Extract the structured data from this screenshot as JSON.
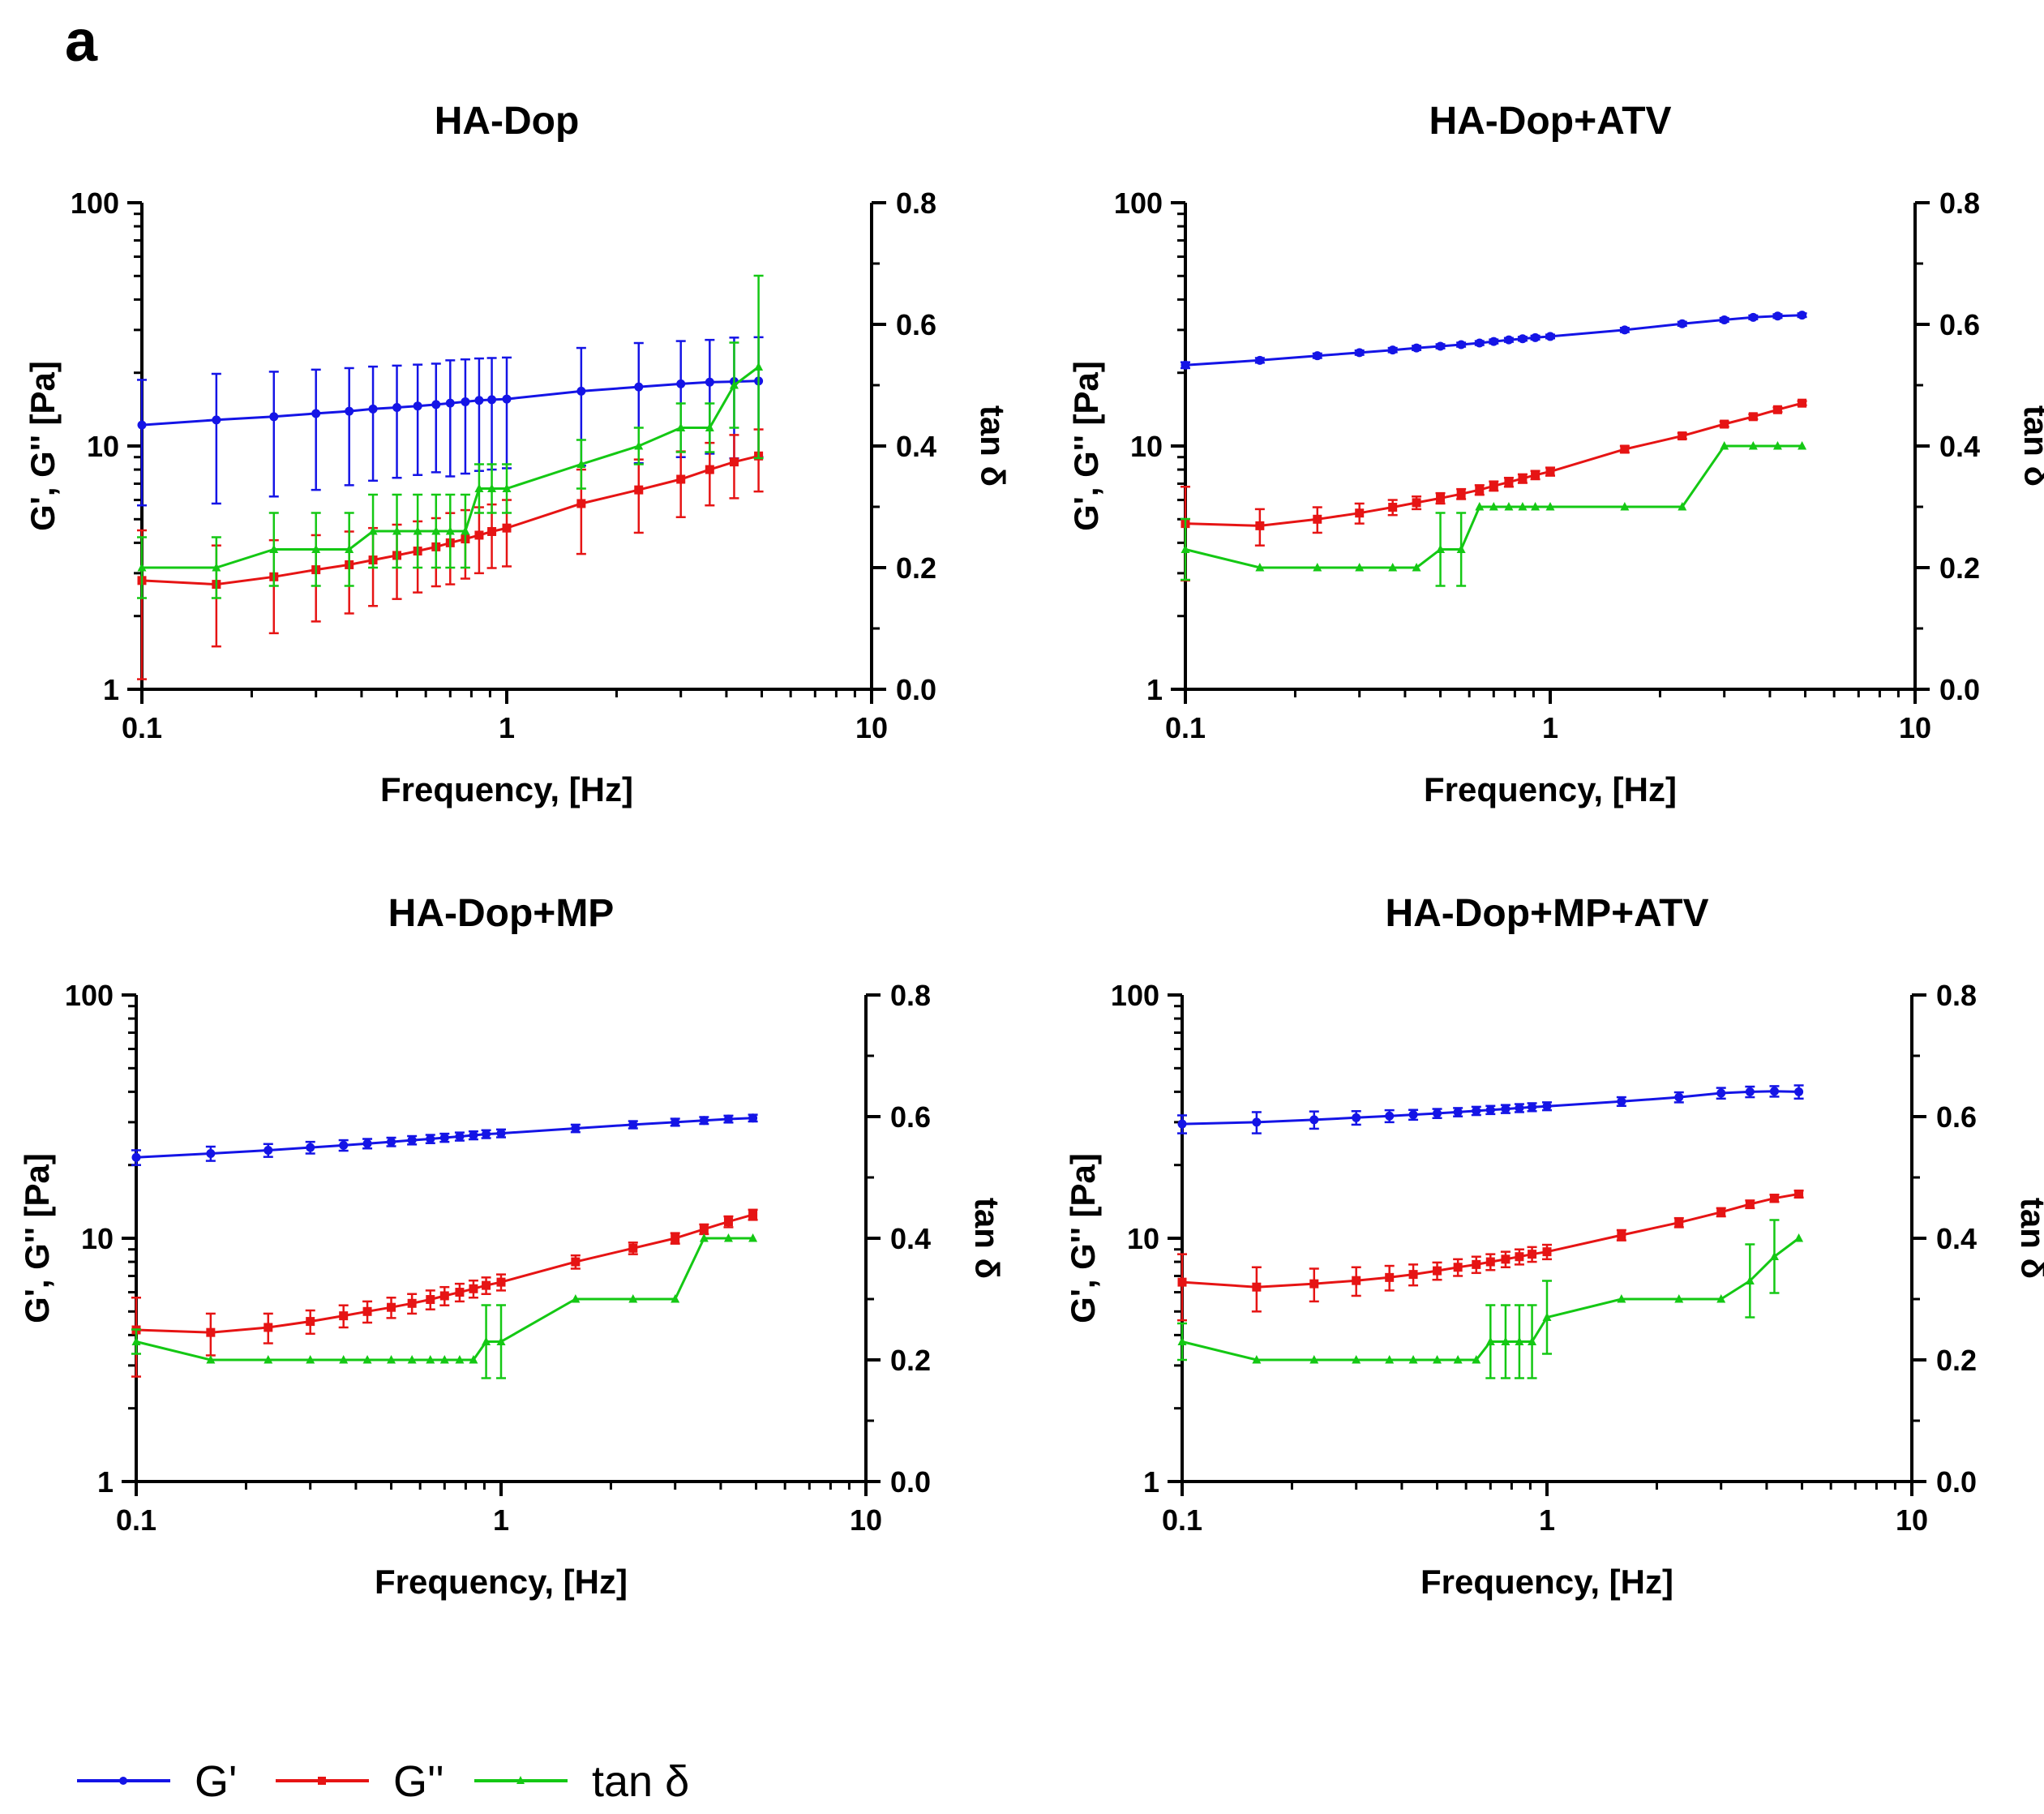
{
  "figure": {
    "panel_letter": "a",
    "colors": {
      "g_prime": "#1414e6",
      "g_double_prime": "#e61414",
      "tan_delta": "#14c814"
    }
  },
  "legend": {
    "items": [
      {
        "name": "G'",
        "color": "#1414e6"
      },
      {
        "name": "G''",
        "color": "#e61414"
      },
      {
        "name": "tan δ",
        "color": "#14c814"
      }
    ]
  },
  "chart_data": [
    {
      "type": "line",
      "title": "HA-Dop",
      "xlabel": "Frequency, [Hz]",
      "ylabel": "G', G'' [Pa]",
      "y2label": "tan δ",
      "xscale": "log",
      "xlim": [
        0.1,
        10
      ],
      "xticks": [
        "0.1",
        "1",
        "10"
      ],
      "yscale": "log",
      "ylim": [
        1,
        100
      ],
      "yticks": [
        "1",
        "10",
        "100"
      ],
      "y2lim": [
        0,
        0.8
      ],
      "y2ticks": [
        "0.0",
        "0.2",
        "0.4",
        "0.6",
        "0.8"
      ],
      "series": [
        {
          "name": "G'",
          "axis": "left",
          "x": [
            0.1,
            0.16,
            0.23,
            0.3,
            0.37,
            0.43,
            0.5,
            0.57,
            0.64,
            0.7,
            0.77,
            0.84,
            0.91,
            1.0,
            1.6,
            2.3,
            3.0,
            3.6,
            4.2,
            4.9
          ],
          "y": [
            12.2,
            12.8,
            13.2,
            13.6,
            13.9,
            14.2,
            14.4,
            14.6,
            14.8,
            15.0,
            15.2,
            15.4,
            15.5,
            15.6,
            16.8,
            17.5,
            18.0,
            18.3,
            18.4,
            18.5
          ],
          "err": [
            6.5,
            7,
            7,
            7,
            7,
            7,
            7,
            7,
            7,
            7.5,
            7.5,
            7.5,
            7.5,
            7.5,
            8.5,
            9,
            9,
            9,
            9.5,
            9.5
          ]
        },
        {
          "name": "G''",
          "axis": "left",
          "x": [
            0.1,
            0.16,
            0.23,
            0.3,
            0.37,
            0.43,
            0.5,
            0.57,
            0.64,
            0.7,
            0.77,
            0.84,
            0.91,
            1.0,
            1.6,
            2.3,
            3.0,
            3.6,
            4.2,
            4.9
          ],
          "y": [
            2.8,
            2.7,
            2.9,
            3.1,
            3.25,
            3.4,
            3.55,
            3.7,
            3.85,
            4.0,
            4.15,
            4.3,
            4.45,
            4.6,
            5.8,
            6.6,
            7.3,
            8.0,
            8.6,
            9.1
          ],
          "err": [
            1.7,
            1.2,
            1.2,
            1.2,
            1.2,
            1.2,
            1.2,
            1.2,
            1.2,
            1.3,
            1.3,
            1.3,
            1.3,
            1.4,
            2.2,
            2.2,
            2.2,
            2.3,
            2.5,
            2.6
          ]
        },
        {
          "name": "tan δ",
          "axis": "right",
          "x": [
            0.1,
            0.16,
            0.23,
            0.3,
            0.37,
            0.43,
            0.5,
            0.57,
            0.64,
            0.7,
            0.77,
            0.84,
            0.91,
            1.0,
            1.6,
            2.3,
            3.0,
            3.6,
            4.2,
            4.9
          ],
          "y": [
            0.2,
            0.2,
            0.23,
            0.23,
            0.23,
            0.26,
            0.26,
            0.26,
            0.26,
            0.26,
            0.26,
            0.33,
            0.33,
            0.33,
            0.37,
            0.4,
            0.43,
            0.43,
            0.5,
            0.53
          ],
          "err": [
            0.05,
            0.05,
            0.06,
            0.06,
            0.06,
            0.06,
            0.06,
            0.06,
            0.06,
            0.06,
            0.06,
            0.04,
            0.04,
            0.04,
            0.04,
            0.03,
            0.04,
            0.04,
            0.07,
            0.15
          ]
        }
      ]
    },
    {
      "type": "line",
      "title": "HA-Dop+ATV",
      "xlabel": "Frequency, [Hz]",
      "ylabel": "G', G'' [Pa]",
      "y2label": "tan δ",
      "xscale": "log",
      "xlim": [
        0.1,
        10
      ],
      "xticks": [
        "0.1",
        "1",
        "10"
      ],
      "yscale": "log",
      "ylim": [
        1,
        100
      ],
      "yticks": [
        "1",
        "10",
        "100"
      ],
      "y2lim": [
        0,
        0.8
      ],
      "y2ticks": [
        "0.0",
        "0.2",
        "0.4",
        "0.6",
        "0.8"
      ],
      "series": [
        {
          "name": "G'",
          "axis": "left",
          "x": [
            0.1,
            0.16,
            0.23,
            0.3,
            0.37,
            0.43,
            0.5,
            0.57,
            0.64,
            0.7,
            0.77,
            0.84,
            0.91,
            1.0,
            1.6,
            2.3,
            3.0,
            3.6,
            4.2,
            4.9
          ],
          "y": [
            21.5,
            22.5,
            23.5,
            24.2,
            24.8,
            25.3,
            25.7,
            26.1,
            26.5,
            26.9,
            27.3,
            27.6,
            27.9,
            28.2,
            30.0,
            31.8,
            33.0,
            33.8,
            34.2,
            34.5
          ],
          "err": [
            0.6,
            0.5,
            0.5,
            0.5,
            0.5,
            0.5,
            0.5,
            0.5,
            0.5,
            0.5,
            0.5,
            0.5,
            0.5,
            0.5,
            0.6,
            0.6,
            0.6,
            0.6,
            0.6,
            0.6
          ]
        },
        {
          "name": "G''",
          "axis": "left",
          "x": [
            0.1,
            0.16,
            0.23,
            0.3,
            0.37,
            0.43,
            0.5,
            0.57,
            0.64,
            0.7,
            0.77,
            0.84,
            0.91,
            1.0,
            1.6,
            2.3,
            3.0,
            3.6,
            4.2,
            4.9
          ],
          "y": [
            4.8,
            4.7,
            5.0,
            5.3,
            5.6,
            5.85,
            6.1,
            6.35,
            6.6,
            6.85,
            7.1,
            7.35,
            7.6,
            7.85,
            9.7,
            11.0,
            12.3,
            13.2,
            14.1,
            15.0
          ],
          "err": [
            2.0,
            0.8,
            0.6,
            0.5,
            0.4,
            0.35,
            0.3,
            0.3,
            0.3,
            0.3,
            0.3,
            0.3,
            0.3,
            0.3,
            0.3,
            0.3,
            0.3,
            0.3,
            0.3,
            0.3
          ]
        },
        {
          "name": "tan δ",
          "axis": "right",
          "x": [
            0.1,
            0.16,
            0.23,
            0.3,
            0.37,
            0.43,
            0.5,
            0.57,
            0.64,
            0.7,
            0.77,
            0.84,
            0.91,
            1.0,
            1.6,
            2.3,
            3.0,
            3.6,
            4.2,
            4.9
          ],
          "y": [
            0.23,
            0.2,
            0.2,
            0.2,
            0.2,
            0.2,
            0.23,
            0.23,
            0.3,
            0.3,
            0.3,
            0.3,
            0.3,
            0.3,
            0.3,
            0.3,
            0.4,
            0.4,
            0.4,
            0.4
          ],
          "err": [
            0.05,
            0,
            0,
            0,
            0,
            0,
            0.06,
            0.06,
            0,
            0,
            0,
            0,
            0,
            0,
            0,
            0,
            0,
            0,
            0,
            0
          ]
        }
      ]
    },
    {
      "type": "line",
      "title": "HA-Dop+MP",
      "xlabel": "Frequency, [Hz]",
      "ylabel": "G', G'' [Pa]",
      "y2label": "tan δ",
      "xscale": "log",
      "xlim": [
        0.1,
        10
      ],
      "xticks": [
        "0.1",
        "1",
        "10"
      ],
      "yscale": "log",
      "ylim": [
        1,
        100
      ],
      "yticks": [
        "1",
        "10",
        "100"
      ],
      "y2lim": [
        0,
        0.8
      ],
      "y2ticks": [
        "0.0",
        "0.2",
        "0.4",
        "0.6",
        "0.8"
      ],
      "series": [
        {
          "name": "G'",
          "axis": "left",
          "x": [
            0.1,
            0.16,
            0.23,
            0.3,
            0.37,
            0.43,
            0.5,
            0.57,
            0.64,
            0.7,
            0.77,
            0.84,
            0.91,
            1.0,
            1.6,
            2.3,
            3.0,
            3.6,
            4.2,
            4.9
          ],
          "y": [
            21.5,
            22.3,
            23.0,
            23.6,
            24.1,
            24.5,
            24.9,
            25.3,
            25.6,
            25.9,
            26.2,
            26.5,
            26.8,
            27.0,
            28.3,
            29.3,
            30.0,
            30.5,
            30.9,
            31.2
          ],
          "err": [
            1.5,
            1.5,
            1.4,
            1.3,
            1.2,
            1.1,
            1.0,
            1.0,
            1.0,
            1.0,
            1.0,
            1.0,
            1.0,
            1.0,
            1.0,
            1.0,
            1.0,
            1.0,
            1.0,
            1.0
          ]
        },
        {
          "name": "G''",
          "axis": "left",
          "x": [
            0.1,
            0.16,
            0.23,
            0.3,
            0.37,
            0.43,
            0.5,
            0.57,
            0.64,
            0.7,
            0.77,
            0.84,
            0.91,
            1.0,
            1.6,
            2.3,
            3.0,
            3.6,
            4.2,
            4.9
          ],
          "y": [
            4.2,
            4.1,
            4.3,
            4.55,
            4.8,
            5.0,
            5.2,
            5.4,
            5.6,
            5.8,
            6.0,
            6.2,
            6.4,
            6.6,
            8.0,
            9.1,
            10.0,
            10.9,
            11.7,
            12.5
          ],
          "err": [
            1.5,
            0.8,
            0.6,
            0.5,
            0.5,
            0.5,
            0.5,
            0.5,
            0.5,
            0.5,
            0.5,
            0.5,
            0.5,
            0.5,
            0.5,
            0.5,
            0.5,
            0.5,
            0.6,
            0.6
          ]
        },
        {
          "name": "tan δ",
          "axis": "right",
          "x": [
            0.1,
            0.16,
            0.23,
            0.3,
            0.37,
            0.43,
            0.5,
            0.57,
            0.64,
            0.7,
            0.77,
            0.84,
            0.91,
            1.0,
            1.6,
            2.3,
            3.0,
            3.6,
            4.2,
            4.9
          ],
          "y": [
            0.23,
            0.2,
            0.2,
            0.2,
            0.2,
            0.2,
            0.2,
            0.2,
            0.2,
            0.2,
            0.2,
            0.2,
            0.23,
            0.23,
            0.3,
            0.3,
            0.3,
            0.4,
            0.4,
            0.4
          ],
          "err": [
            0.02,
            0,
            0,
            0,
            0,
            0,
            0,
            0,
            0,
            0,
            0,
            0,
            0.06,
            0.06,
            0,
            0,
            0,
            0,
            0,
            0
          ]
        }
      ]
    },
    {
      "type": "line",
      "title": "HA-Dop+MP+ATV",
      "xlabel": "Frequency, [Hz]",
      "ylabel": "G', G'' [Pa]",
      "y2label": "tan δ",
      "xscale": "log",
      "xlim": [
        0.1,
        10
      ],
      "xticks": [
        "0.1",
        "1",
        "10"
      ],
      "yscale": "log",
      "ylim": [
        1,
        100
      ],
      "yticks": [
        "1",
        "10",
        "100"
      ],
      "y2lim": [
        0,
        0.8
      ],
      "y2ticks": [
        "0.0",
        "0.2",
        "0.4",
        "0.6",
        "0.8"
      ],
      "series": [
        {
          "name": "G'",
          "axis": "left",
          "x": [
            0.1,
            0.16,
            0.23,
            0.3,
            0.37,
            0.43,
            0.5,
            0.57,
            0.64,
            0.7,
            0.77,
            0.84,
            0.91,
            1.0,
            1.6,
            2.3,
            3.0,
            3.6,
            4.2,
            4.9
          ],
          "y": [
            29.5,
            30.0,
            30.7,
            31.3,
            31.8,
            32.2,
            32.6,
            33.0,
            33.4,
            33.7,
            34.0,
            34.3,
            34.6,
            34.9,
            36.5,
            38.0,
            39.5,
            40.0,
            40.2,
            40.0
          ],
          "err": [
            2.5,
            3.0,
            2.5,
            2.0,
            1.8,
            1.5,
            1.4,
            1.3,
            1.3,
            1.3,
            1.3,
            1.3,
            1.3,
            1.3,
            1.5,
            1.8,
            2.0,
            2.0,
            2.0,
            2.5
          ]
        },
        {
          "name": "G''",
          "axis": "left",
          "x": [
            0.1,
            0.16,
            0.23,
            0.3,
            0.37,
            0.43,
            0.5,
            0.57,
            0.64,
            0.7,
            0.77,
            0.84,
            0.91,
            1.0,
            1.6,
            2.3,
            3.0,
            3.6,
            4.2,
            4.9
          ],
          "y": [
            6.6,
            6.3,
            6.5,
            6.7,
            6.9,
            7.1,
            7.35,
            7.6,
            7.8,
            8.0,
            8.2,
            8.4,
            8.6,
            8.8,
            10.3,
            11.6,
            12.8,
            13.8,
            14.6,
            15.2
          ],
          "err": [
            2.0,
            1.3,
            1.0,
            0.9,
            0.8,
            0.7,
            0.6,
            0.6,
            0.6,
            0.6,
            0.6,
            0.6,
            0.6,
            0.6,
            0.5,
            0.5,
            0.5,
            0.5,
            0.5,
            0.5
          ]
        },
        {
          "name": "tan δ",
          "axis": "right",
          "x": [
            0.1,
            0.16,
            0.23,
            0.3,
            0.37,
            0.43,
            0.5,
            0.57,
            0.64,
            0.7,
            0.77,
            0.84,
            0.91,
            1.0,
            1.6,
            2.3,
            3.0,
            3.6,
            4.2,
            4.9
          ],
          "y": [
            0.23,
            0.2,
            0.2,
            0.2,
            0.2,
            0.2,
            0.2,
            0.2,
            0.2,
            0.23,
            0.23,
            0.23,
            0.23,
            0.27,
            0.3,
            0.3,
            0.3,
            0.33,
            0.37,
            0.4
          ],
          "err": [
            0.03,
            0,
            0,
            0,
            0,
            0,
            0,
            0,
            0,
            0.06,
            0.06,
            0.06,
            0.06,
            0.06,
            0,
            0,
            0,
            0.06,
            0.06,
            0
          ]
        }
      ]
    }
  ]
}
